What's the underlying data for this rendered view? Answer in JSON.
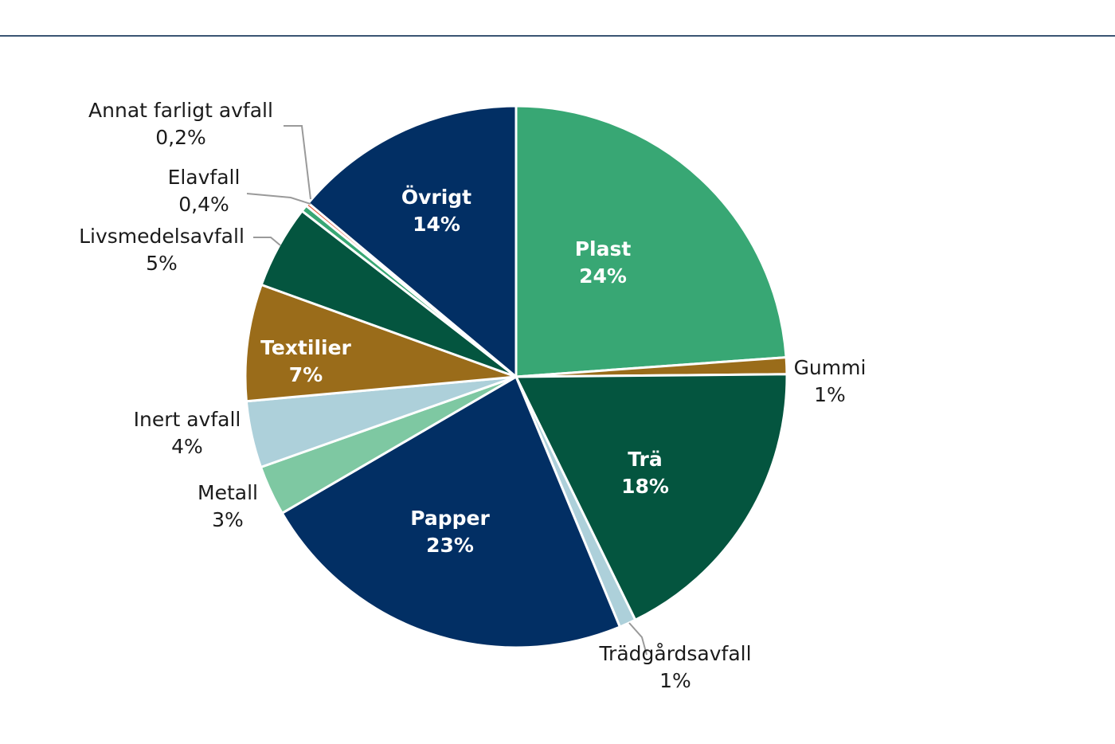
{
  "chart_data": {
    "type": "pie",
    "title": "",
    "slices": [
      {
        "name": "Plast",
        "value": 24,
        "value_label": "24%",
        "color": "#38a774",
        "label_inside": true
      },
      {
        "name": "Gummi",
        "value": 1,
        "value_label": "1%",
        "color": "#9a6c1a",
        "label_inside": false
      },
      {
        "name": "Trä",
        "value": 18,
        "value_label": "18%",
        "color": "#04553f",
        "label_inside": true
      },
      {
        "name": "Trädgårdsavfall",
        "value": 1,
        "value_label": "1%",
        "color": "#add0da",
        "label_inside": false
      },
      {
        "name": "Papper",
        "value": 23,
        "value_label": "23%",
        "color": "#022f64",
        "label_inside": true
      },
      {
        "name": "Metall",
        "value": 3,
        "value_label": "3%",
        "color": "#7ec8a2",
        "label_inside": false
      },
      {
        "name": "Inert avfall",
        "value": 4,
        "value_label": "4%",
        "color": "#add0da",
        "label_inside": false
      },
      {
        "name": "Textilier",
        "value": 7,
        "value_label": "7%",
        "color": "#9a6c1a",
        "label_inside": true
      },
      {
        "name": "Livsmedelsavfall",
        "value": 5,
        "value_label": "5%",
        "color": "#04553f",
        "label_inside": false
      },
      {
        "name": "Elavfall",
        "value": 0.4,
        "value_label": "0,4%",
        "color": "#38a774",
        "label_inside": false
      },
      {
        "name": "Annat farligt avfall",
        "value": 0.2,
        "value_label": "0,2%",
        "color": "#e0532f",
        "label_inside": false
      },
      {
        "name": "Övrigt",
        "value": 14,
        "value_label": "14%",
        "color": "#022f64",
        "label_inside": true
      }
    ]
  }
}
